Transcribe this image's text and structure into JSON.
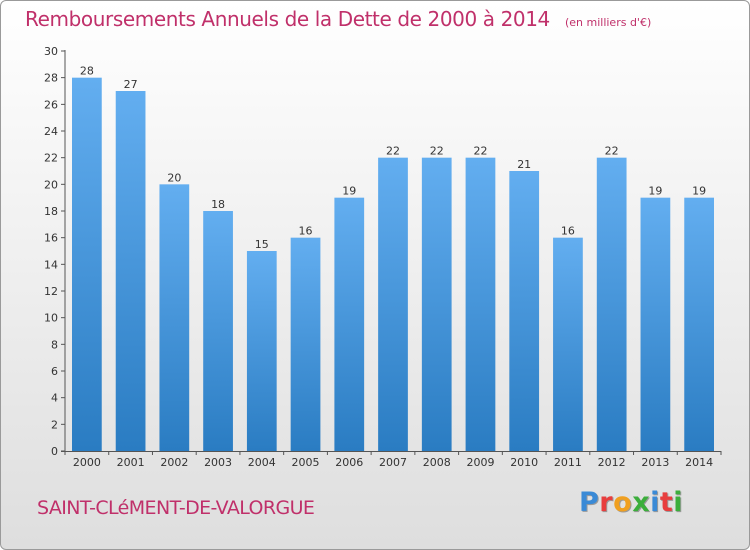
{
  "header": {
    "title": "Remboursements Annuels de la Dette de 2000 à 2014",
    "subtitle": "(en milliers d'€)"
  },
  "footer": {
    "commune": "SAINT-CLéMENT-DE-VALORGUE",
    "logo_text": "Proxiti",
    "logo_colors": [
      "#3a8ad6",
      "#e83e3e",
      "#f0a020",
      "#3cae3c",
      "#3a8ad6",
      "#e83e3e",
      "#3cae3c"
    ]
  },
  "chart_data": {
    "type": "bar",
    "title": "Remboursements Annuels de la Dette de 2000 à 2014",
    "subtitle": "(en milliers d'€)",
    "categories": [
      "2000",
      "2001",
      "2002",
      "2003",
      "2004",
      "2005",
      "2006",
      "2007",
      "2008",
      "2009",
      "2010",
      "2011",
      "2012",
      "2013",
      "2014"
    ],
    "values": [
      28,
      27,
      20,
      18,
      15,
      16,
      19,
      22,
      22,
      22,
      21,
      16,
      22,
      19,
      19
    ],
    "ylim": [
      0,
      30
    ],
    "yticks": [
      0,
      2,
      4,
      6,
      8,
      10,
      12,
      14,
      16,
      18,
      20,
      22,
      24,
      26,
      28,
      30
    ],
    "grid": false,
    "colors": {
      "bar_top": "#63aef0",
      "bar_bottom": "#2a7cc2",
      "axis": "#555555"
    }
  }
}
